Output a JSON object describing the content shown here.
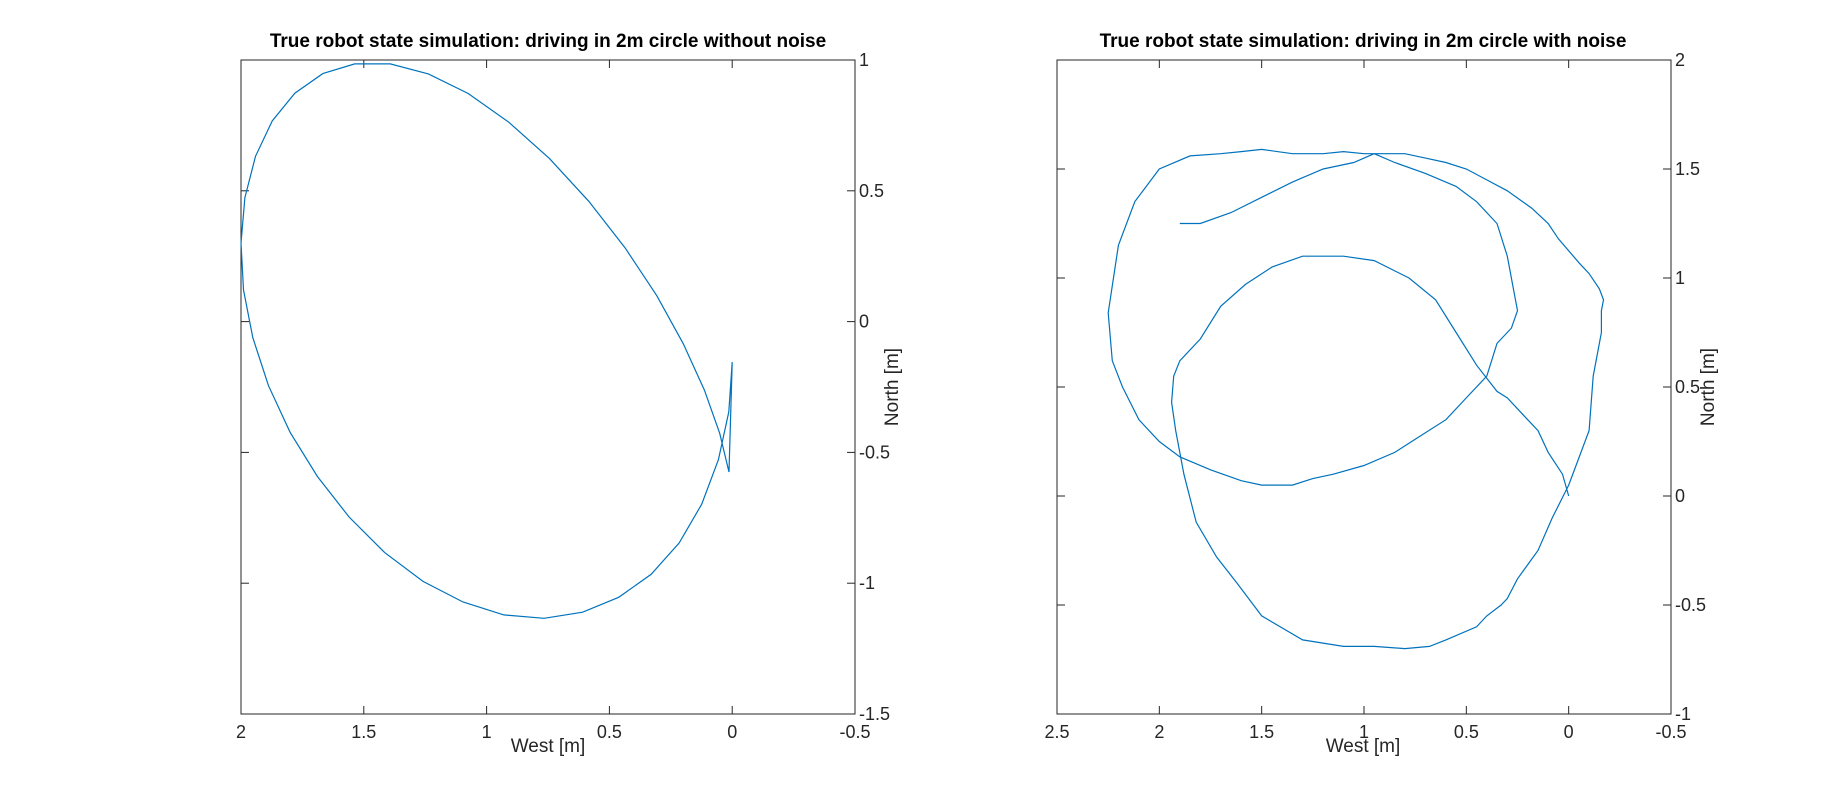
{
  "colors": {
    "line": "#0072BD",
    "axis": "#262626",
    "background": "#ffffff"
  },
  "chart_data": [
    {
      "type": "line",
      "title": "True robot state simulation: driving in 2m circle without noise",
      "xlabel": "West [m]",
      "ylabel": "North [m]",
      "xlim": [
        -0.5,
        2
      ],
      "ylim": [
        -1.5,
        1
      ],
      "x_reversed": true,
      "y_axis_side": "right",
      "grid": false,
      "xticks": [
        2,
        1.5,
        1,
        0.5,
        0,
        -0.5
      ],
      "xtick_labels": [
        "2",
        "1.5",
        "1",
        "0.5",
        "0",
        "-0.5"
      ],
      "yticks": [
        1,
        0.5,
        0,
        -0.5,
        -1,
        -1.5
      ],
      "ytick_labels": [
        "1",
        "0.5",
        "0",
        "-0.5",
        "-1",
        "-1.5"
      ],
      "series": [
        {
          "x": [
            0.0,
            0.014,
            0.056,
            0.124,
            0.216,
            0.33,
            0.462,
            0.609,
            0.766,
            0.93,
            1.096,
            1.259,
            1.415,
            1.56,
            1.689,
            1.8,
            1.888,
            1.952,
            1.99,
            2.0,
            1.984,
            1.941,
            1.873,
            1.781,
            1.667,
            1.537,
            1.392,
            1.237,
            1.075,
            0.909,
            0.744,
            0.584,
            0.437,
            0.307,
            0.199,
            0.113,
            0.051,
            0.013,
            0.0
          ],
          "y": [
            -0.155,
            -0.345,
            -0.528,
            -0.698,
            -0.846,
            -0.966,
            -1.054,
            -1.111,
            -1.134,
            -1.121,
            -1.072,
            -0.993,
            -0.883,
            -0.747,
            -0.592,
            -0.423,
            -0.245,
            -0.061,
            0.121,
            0.301,
            0.474,
            0.632,
            0.767,
            0.873,
            0.948,
            0.985,
            0.985,
            0.947,
            0.872,
            0.762,
            0.623,
            0.46,
            0.283,
            0.099,
            -0.085,
            -0.262,
            -0.427,
            -0.575,
            -0.155
          ]
        }
      ]
    },
    {
      "type": "line",
      "title": "True robot state simulation: driving in 2m circle with noise",
      "xlabel": "West [m]",
      "ylabel": "North [m]",
      "xlim": [
        -0.5,
        2.5
      ],
      "ylim": [
        -1,
        2
      ],
      "x_reversed": true,
      "y_axis_side": "right",
      "grid": false,
      "xticks": [
        2.5,
        2,
        1.5,
        1,
        0.5,
        0,
        -0.5
      ],
      "xtick_labels": [
        "2.5",
        "2",
        "1.5",
        "1",
        "0.5",
        "0",
        "-0.5"
      ],
      "yticks": [
        2,
        1.5,
        1,
        0.5,
        0,
        -0.5,
        -1
      ],
      "ytick_labels": [
        "2",
        "1.5",
        "1",
        "0.5",
        "0",
        "-0.5",
        "-1"
      ],
      "series": [
        {
          "x": [
            0.0,
            0.03,
            0.1,
            0.15,
            0.2,
            0.3,
            0.35,
            0.45,
            0.55,
            0.65,
            0.78,
            0.95,
            1.1,
            1.3,
            1.45,
            1.58,
            1.7,
            1.8,
            1.9,
            1.93,
            1.94,
            1.92,
            1.88,
            1.82,
            1.72,
            1.62,
            1.5,
            1.3,
            1.1,
            0.95,
            0.8,
            0.68,
            0.6,
            0.45,
            0.4,
            0.33,
            0.3,
            0.25,
            0.15,
            0.08,
            0.0,
            -0.1,
            -0.12,
            -0.16,
            -0.16,
            -0.17,
            -0.15,
            -0.1,
            -0.05,
            0.05,
            0.1,
            0.18,
            0.3,
            0.4,
            0.5,
            0.6,
            0.7,
            0.8,
            0.9,
            1.0,
            1.1,
            1.2,
            1.35,
            1.5,
            1.6,
            1.7,
            1.85,
            2.0,
            2.12,
            2.2,
            2.25,
            2.23,
            2.18,
            2.1,
            2.0,
            1.9,
            1.75,
            1.6,
            1.5,
            1.35,
            1.25,
            1.15,
            1.0,
            0.85,
            0.75,
            0.6,
            0.5,
            0.4,
            0.35,
            0.28,
            0.25,
            0.27,
            0.3,
            0.35,
            0.45,
            0.55,
            0.7,
            0.85,
            0.95,
            1.05,
            1.2,
            1.35,
            1.5,
            1.65,
            1.8,
            1.9
          ],
          "y": [
            0.0,
            0.1,
            0.2,
            0.3,
            0.35,
            0.45,
            0.48,
            0.6,
            0.75,
            0.9,
            1.0,
            1.08,
            1.1,
            1.1,
            1.05,
            0.97,
            0.87,
            0.72,
            0.62,
            0.55,
            0.43,
            0.3,
            0.1,
            -0.12,
            -0.28,
            -0.4,
            -0.55,
            -0.66,
            -0.69,
            -0.69,
            -0.7,
            -0.69,
            -0.66,
            -0.6,
            -0.55,
            -0.5,
            -0.47,
            -0.38,
            -0.25,
            -0.1,
            0.05,
            0.3,
            0.55,
            0.75,
            0.85,
            0.9,
            0.95,
            1.02,
            1.07,
            1.18,
            1.25,
            1.32,
            1.4,
            1.45,
            1.5,
            1.53,
            1.55,
            1.57,
            1.57,
            1.57,
            1.58,
            1.57,
            1.57,
            1.59,
            1.58,
            1.57,
            1.56,
            1.5,
            1.35,
            1.15,
            0.84,
            0.62,
            0.5,
            0.35,
            0.25,
            0.18,
            0.12,
            0.07,
            0.05,
            0.05,
            0.08,
            0.1,
            0.14,
            0.2,
            0.26,
            0.35,
            0.45,
            0.55,
            0.7,
            0.77,
            0.85,
            0.95,
            1.1,
            1.25,
            1.35,
            1.42,
            1.48,
            1.53,
            1.57,
            1.53,
            1.5,
            1.44,
            1.37,
            1.3,
            1.25,
            1.25
          ]
        }
      ]
    }
  ]
}
